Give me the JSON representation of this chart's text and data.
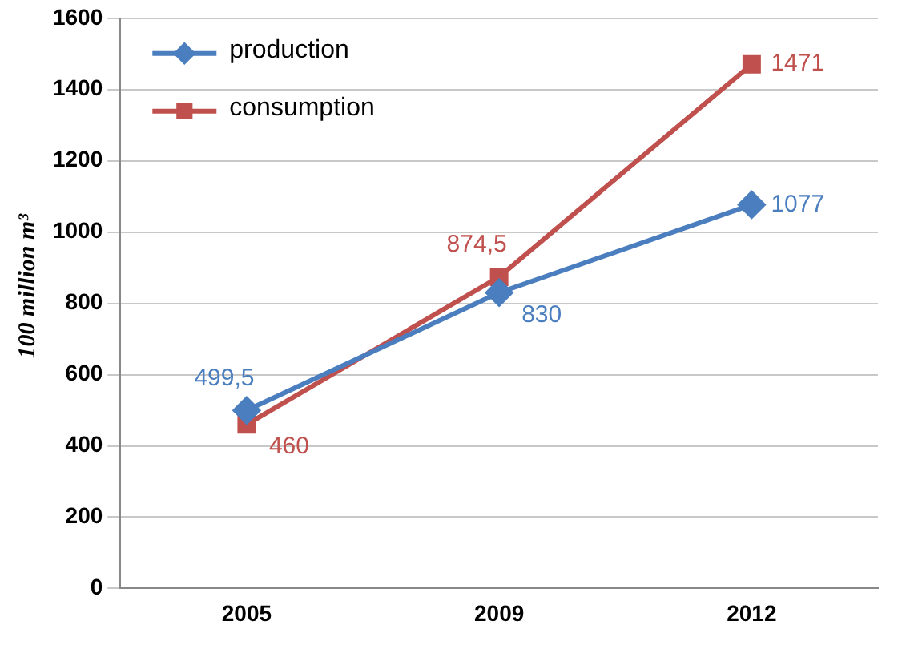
{
  "chart_data": {
    "type": "line",
    "ylabel": "100 million m³",
    "categories": [
      "2005",
      "2009",
      "2012"
    ],
    "series": [
      {
        "name": "production",
        "color": "#4a7ebf",
        "marker": "diamond",
        "values": [
          499.5,
          830,
          1077
        ],
        "value_labels": [
          "499,5",
          "830",
          "1077"
        ]
      },
      {
        "name": "consumption",
        "color": "#c0504d",
        "marker": "square",
        "values": [
          460,
          874.5,
          1471
        ],
        "value_labels": [
          "460",
          "874,5",
          "1471"
        ]
      }
    ],
    "ylim": [
      0,
      1600
    ],
    "yticks": [
      0,
      200,
      400,
      600,
      800,
      1000,
      1200,
      1400,
      1600
    ],
    "grid": "y",
    "legend": "top left"
  }
}
